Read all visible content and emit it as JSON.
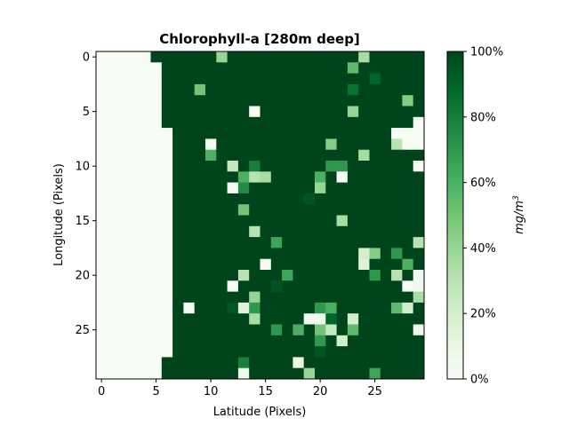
{
  "chart_data": {
    "type": "heatmap",
    "title": "Chlorophyll-a [280m deep]",
    "xlabel": "Latitude (Pixels)",
    "ylabel": "Longitude (Pixels)",
    "colorbar_label": "mg/m3",
    "colormap": "Greens",
    "colormap_low": "#f7fcf5",
    "colormap_high": "#00441b",
    "value_range": [
      0,
      100
    ],
    "value_unit": "%",
    "x_ticks": [
      0,
      5,
      10,
      15,
      20,
      25
    ],
    "y_ticks": [
      0,
      5,
      10,
      15,
      20,
      25
    ],
    "colorbar_ticks": [
      "0%",
      "20%",
      "40%",
      "60%",
      "80%",
      "100%"
    ],
    "colorbar_tick_values": [
      0,
      20,
      40,
      60,
      80,
      100
    ],
    "rows": 30,
    "cols": 30,
    "default_value": 100,
    "land_value": 0,
    "land_cols_per_row": [
      4,
      5,
      5,
      5,
      5,
      5,
      5,
      6,
      6,
      6,
      6,
      6,
      6,
      6,
      6,
      6,
      6,
      6,
      6,
      6,
      6,
      6,
      6,
      6,
      6,
      6,
      6,
      6,
      5,
      5
    ],
    "anomalies": [
      [
        0,
        11,
        40
      ],
      [
        0,
        24,
        35
      ],
      [
        1,
        23,
        55
      ],
      [
        2,
        25,
        90
      ],
      [
        3,
        9,
        50
      ],
      [
        3,
        23,
        85
      ],
      [
        4,
        28,
        45
      ],
      [
        5,
        14,
        0
      ],
      [
        5,
        23,
        40
      ],
      [
        6,
        29,
        0
      ],
      [
        7,
        27,
        0
      ],
      [
        7,
        28,
        0
      ],
      [
        7,
        29,
        0
      ],
      [
        8,
        10,
        0
      ],
      [
        8,
        21,
        45
      ],
      [
        8,
        27,
        30
      ],
      [
        8,
        28,
        0
      ],
      [
        8,
        29,
        0
      ],
      [
        9,
        10,
        60
      ],
      [
        9,
        24,
        35
      ],
      [
        10,
        12,
        25
      ],
      [
        10,
        14,
        80
      ],
      [
        10,
        21,
        70
      ],
      [
        10,
        22,
        70
      ],
      [
        10,
        29,
        0
      ],
      [
        11,
        13,
        60
      ],
      [
        11,
        14,
        30
      ],
      [
        11,
        15,
        35
      ],
      [
        11,
        20,
        60
      ],
      [
        11,
        22,
        0
      ],
      [
        12,
        12,
        0
      ],
      [
        12,
        13,
        75
      ],
      [
        12,
        20,
        40
      ],
      [
        13,
        19,
        95
      ],
      [
        14,
        13,
        50
      ],
      [
        15,
        22,
        35
      ],
      [
        16,
        14,
        30
      ],
      [
        17,
        16,
        65
      ],
      [
        17,
        29,
        30
      ],
      [
        18,
        24,
        20
      ],
      [
        18,
        25,
        45
      ],
      [
        18,
        27,
        70
      ],
      [
        19,
        15,
        0
      ],
      [
        19,
        24,
        15
      ],
      [
        19,
        28,
        60
      ],
      [
        20,
        13,
        30
      ],
      [
        20,
        17,
        65
      ],
      [
        20,
        25,
        70
      ],
      [
        20,
        27,
        30
      ],
      [
        20,
        29,
        5
      ],
      [
        21,
        12,
        0
      ],
      [
        21,
        16,
        95
      ],
      [
        21,
        28,
        0
      ],
      [
        21,
        29,
        5
      ],
      [
        22,
        14,
        40
      ],
      [
        22,
        29,
        35
      ],
      [
        23,
        8,
        0
      ],
      [
        23,
        12,
        95
      ],
      [
        23,
        13,
        15
      ],
      [
        23,
        14,
        70
      ],
      [
        23,
        20,
        70
      ],
      [
        23,
        21,
        60
      ],
      [
        23,
        27,
        55
      ],
      [
        23,
        28,
        20
      ],
      [
        24,
        14,
        35
      ],
      [
        24,
        19,
        5
      ],
      [
        24,
        20,
        5
      ],
      [
        24,
        21,
        90
      ],
      [
        24,
        23,
        20
      ],
      [
        25,
        16,
        70
      ],
      [
        25,
        18,
        60
      ],
      [
        25,
        20,
        50
      ],
      [
        25,
        21,
        25
      ],
      [
        25,
        23,
        55
      ],
      [
        25,
        29,
        5
      ],
      [
        26,
        20,
        70
      ],
      [
        26,
        22,
        20
      ],
      [
        27,
        20,
        95
      ],
      [
        28,
        13,
        80
      ],
      [
        28,
        18,
        10
      ],
      [
        28,
        23,
        100
      ],
      [
        29,
        13,
        5
      ],
      [
        29,
        19,
        40
      ],
      [
        29,
        25,
        65
      ]
    ]
  }
}
